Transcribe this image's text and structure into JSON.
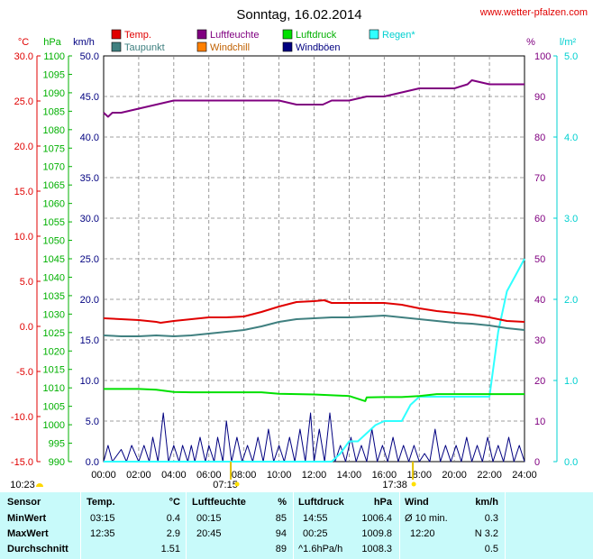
{
  "title": "Sonntag, 16.02.2014",
  "website": "www.wetter-pfalzen.com",
  "legend": [
    {
      "name": "Temp.",
      "color": "#e00000",
      "textColor": "#e00000"
    },
    {
      "name": "Luftfeuchte",
      "color": "#800080",
      "textColor": "#800080"
    },
    {
      "name": "Luftdruck",
      "color": "#00e000",
      "textColor": "#00b000"
    },
    {
      "name": "Regen*",
      "color": "#30ffff",
      "textColor": "#00d0d0"
    },
    {
      "name": "Taupunkt",
      "color": "#408080",
      "textColor": "#408080"
    },
    {
      "name": "Windchill",
      "color": "#ff8000",
      "textColor": "#c06000"
    },
    {
      "name": "Windböen",
      "color": "#000080",
      "textColor": "#000080"
    }
  ],
  "axis_units": {
    "temp": "°C",
    "pressure": "hPa",
    "wind": "km/h",
    "humidity": "%",
    "rain": "l/m²"
  },
  "axes": {
    "temp_ticks": [
      "30.0",
      "25.0",
      "20.0",
      "15.0",
      "10.0",
      "5.0",
      "0.0",
      "-5.0",
      "-10.0",
      "-15.0"
    ],
    "pressure_ticks": [
      "1100",
      "1095",
      "1090",
      "1085",
      "1080",
      "1075",
      "1070",
      "1065",
      "1060",
      "1055",
      "1050",
      "1045",
      "1040",
      "1035",
      "1030",
      "1025",
      "1020",
      "1015",
      "1010",
      "1005",
      "1000",
      "995",
      "990"
    ],
    "wind_ticks": [
      "50.0",
      "45.0",
      "40.0",
      "35.0",
      "30.0",
      "25.0",
      "20.0",
      "15.0",
      "10.0",
      "5.0",
      "0.0"
    ],
    "humidity_ticks": [
      "100",
      "90",
      "80",
      "70",
      "60",
      "50",
      "40",
      "30",
      "20",
      "10",
      "0"
    ],
    "rain_ticks": [
      "5.0",
      "4.0",
      "3.0",
      "2.0",
      "1.0",
      "0.0"
    ],
    "time_ticks": [
      "00:00",
      "02:00",
      "04:00",
      "06:00",
      "08:00",
      "10:00",
      "12:00",
      "14:00",
      "16:00",
      "18:00",
      "20:00",
      "22:00",
      "24:00"
    ]
  },
  "sun": {
    "sunrise": "07:15",
    "sunset": "17:38",
    "moonrise": "10:23"
  },
  "chart_data": {
    "type": "line",
    "title": "Sonntag, 16.02.2014",
    "x_unit": "hours",
    "xlim": [
      0,
      24
    ],
    "temp_ylim": [
      -15,
      30
    ],
    "pressure_ylim": [
      990,
      1100
    ],
    "wind_ylim": [
      0,
      50
    ],
    "humidity_ylim": [
      0,
      100
    ],
    "rain_ylim": [
      0,
      5
    ],
    "grid": true,
    "series": [
      {
        "name": "Temp.",
        "axis": "temp",
        "color": "#e00000",
        "x": [
          0,
          1,
          2,
          3,
          3.25,
          4,
          5,
          6,
          7,
          8,
          9,
          10,
          11,
          12,
          12.58,
          13,
          14,
          15,
          16,
          17,
          18,
          19,
          20,
          21,
          22,
          23,
          24
        ],
        "y": [
          0.9,
          0.8,
          0.7,
          0.5,
          0.4,
          0.6,
          0.8,
          1.0,
          1.0,
          1.1,
          1.6,
          2.2,
          2.7,
          2.8,
          2.9,
          2.6,
          2.6,
          2.6,
          2.6,
          2.4,
          2.0,
          1.7,
          1.5,
          1.3,
          1.0,
          0.6,
          0.5
        ]
      },
      {
        "name": "Luftfeuchte",
        "axis": "humidity",
        "color": "#800080",
        "x": [
          0,
          0.25,
          0.5,
          1,
          2,
          3,
          4,
          5,
          6,
          7,
          8,
          9,
          10,
          11,
          12,
          12.5,
          13,
          14,
          15,
          16,
          17,
          18,
          19,
          20,
          20.75,
          21,
          22,
          23,
          24
        ],
        "y": [
          86,
          85,
          86,
          86,
          87,
          88,
          89,
          89,
          89,
          89,
          89,
          89,
          89,
          88,
          88,
          88,
          89,
          89,
          90,
          90,
          91,
          92,
          92,
          92,
          93,
          94,
          93,
          93,
          93
        ]
      },
      {
        "name": "Luftdruck",
        "axis": "pressure",
        "color": "#00e000",
        "x": [
          0,
          1,
          2,
          3,
          4,
          5,
          6,
          7,
          8,
          9,
          10,
          11,
          12,
          13,
          14,
          14.92,
          15,
          16,
          17,
          18,
          19,
          20,
          21,
          22,
          23,
          24
        ],
        "y": [
          1009.7,
          1009.7,
          1009.7,
          1009.5,
          1008.9,
          1008.8,
          1008.8,
          1008.8,
          1008.8,
          1008.8,
          1008.4,
          1008.3,
          1008.2,
          1008.0,
          1007.8,
          1006.4,
          1007.4,
          1007.5,
          1007.5,
          1007.8,
          1008.3,
          1008.3,
          1008.3,
          1008.3,
          1008.3,
          1008.3
        ]
      },
      {
        "name": "Regen*",
        "axis": "rain",
        "color": "#30ffff",
        "x": [
          0,
          13,
          13.5,
          14,
          14.5,
          15,
          15.5,
          16,
          16.5,
          17,
          17.5,
          18,
          19,
          20,
          21,
          22,
          22.5,
          23,
          23.5,
          24
        ],
        "y": [
          0,
          0,
          0.1,
          0.25,
          0.25,
          0.35,
          0.45,
          0.5,
          0.5,
          0.5,
          0.7,
          0.8,
          0.8,
          0.8,
          0.8,
          0.8,
          1.6,
          2.1,
          2.3,
          2.5
        ]
      },
      {
        "name": "Taupunkt",
        "axis": "temp",
        "color": "#408080",
        "x": [
          0,
          1,
          2,
          3,
          4,
          5,
          6,
          7,
          8,
          9,
          10,
          11,
          12,
          13,
          14,
          15,
          16,
          17,
          18,
          19,
          20,
          21,
          22,
          23,
          24
        ],
        "y": [
          -1.0,
          -1.1,
          -1.1,
          -1.0,
          -1.1,
          -1.0,
          -0.8,
          -0.6,
          -0.4,
          0.0,
          0.5,
          0.8,
          0.9,
          1.0,
          1.0,
          1.1,
          1.2,
          1.0,
          0.8,
          0.6,
          0.4,
          0.3,
          0.1,
          -0.2,
          -0.4
        ]
      },
      {
        "name": "Windböen",
        "axis": "wind",
        "color": "#000080",
        "x": [
          0,
          0.25,
          0.5,
          1,
          1.3,
          1.6,
          2,
          2.3,
          2.6,
          2.8,
          3.1,
          3.4,
          3.7,
          4,
          4.3,
          4.5,
          4.8,
          5,
          5.2,
          5.5,
          5.8,
          6,
          6.3,
          6.5,
          6.8,
          7,
          7.3,
          7.6,
          7.9,
          8.2,
          8.5,
          8.8,
          9.1,
          9.4,
          9.7,
          10,
          10.3,
          10.6,
          10.9,
          11.2,
          11.5,
          11.8,
          12,
          12.3,
          12.6,
          12.9,
          13.2,
          13.5,
          13.8,
          14.1,
          14.4,
          14.7,
          15,
          15.3,
          15.6,
          15.9,
          16.2,
          16.5,
          16.8,
          17.1,
          17.4,
          17.7,
          18,
          18.3,
          18.6,
          18.9,
          19.2,
          19.5,
          19.8,
          20.1,
          20.4,
          20.7,
          21,
          21.3,
          21.6,
          21.9,
          22.2,
          22.5,
          22.8,
          23.1,
          23.4,
          23.7,
          24
        ],
        "y": [
          0,
          2,
          0,
          1.5,
          0,
          2,
          0,
          2,
          0,
          3,
          0,
          6,
          0,
          2,
          0,
          2,
          0,
          2,
          0,
          3,
          0,
          2,
          0,
          3,
          0,
          5,
          0,
          3,
          0,
          2,
          0,
          3,
          0,
          4,
          0,
          2,
          0,
          3,
          0,
          4,
          0,
          6,
          0,
          4,
          0,
          6,
          0,
          2,
          0,
          3,
          0,
          2,
          0,
          4,
          0,
          2,
          0,
          3,
          0,
          2,
          0,
          2,
          0,
          1,
          0,
          4,
          0,
          2,
          0,
          2,
          0,
          3,
          0,
          2,
          0,
          3,
          0,
          2,
          0,
          3,
          0,
          2,
          0
        ]
      }
    ]
  },
  "stats": {
    "headers": {
      "sensor": "Sensor",
      "temp": "Temp.",
      "temp_unit": "°C",
      "hum": "Luftfeuchte",
      "hum_unit": "%",
      "press": "Luftdruck",
      "press_unit": "hPa",
      "wind": "Wind",
      "wind_unit": "km/h"
    },
    "rows": [
      {
        "label": "MinWert",
        "t_time": "03:15",
        "t_val": "0.4",
        "h_time": "00:15",
        "h_val": "85",
        "p_time": "14:55",
        "p_val": "1006.4",
        "w_time": "Ø 10 min.",
        "w_val": "0.3"
      },
      {
        "label": "MaxWert",
        "t_time": "12:35",
        "t_val": "2.9",
        "h_time": "20:45",
        "h_val": "94",
        "p_time": "00:25",
        "p_val": "1009.8",
        "w_time": "12:20",
        "w_val": "N 3.2"
      },
      {
        "label": "Durchschnitt",
        "t_time": "",
        "t_val": "1.51",
        "h_time": "",
        "h_val": "89",
        "p_time": "^1.6hPa/h",
        "p_val": "1008.3",
        "w_time": "",
        "w_val": "0.5"
      }
    ]
  }
}
